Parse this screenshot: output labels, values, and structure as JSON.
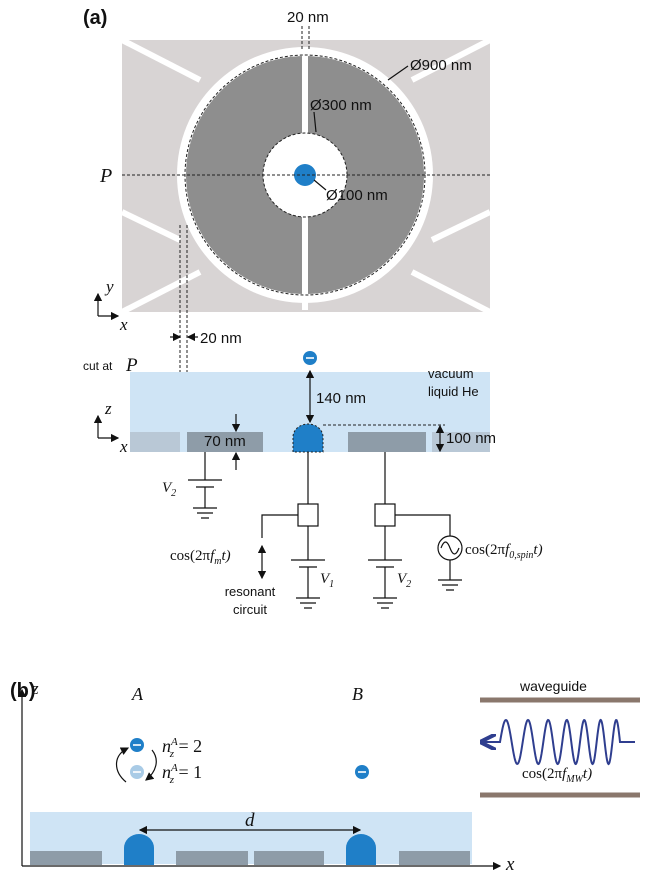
{
  "panel_a": {
    "label": "(a)",
    "top_view": {
      "gap_label": "20 nm",
      "outer_diameter": "Ø900 nm",
      "inner_diameter": "Ø300 nm",
      "dot_diameter": "Ø100 nm",
      "cut_line": "P",
      "axis_y": "y",
      "axis_x": "x",
      "electrode_gap": "20 nm"
    },
    "cross_section": {
      "cut_text": "cut at",
      "cut_var": "P",
      "vacuum": "vacuum",
      "liquid": "liquid He",
      "height": "140 nm",
      "axis_z": "z",
      "axis_x": "x",
      "thickness": "70 nm",
      "dome_height": "100 nm",
      "left_voltage": {
        "base": "V",
        "sub": "2"
      },
      "center_voltage": {
        "base": "V",
        "sub": "1"
      },
      "right_voltage": {
        "base": "V",
        "sub": "2"
      },
      "readout_signal": {
        "pre": "cos(2π",
        "base": "f",
        "sub": "m",
        "post": "t)"
      },
      "readout_label": [
        "resonant",
        "circuit"
      ],
      "drive_signal": {
        "pre": "cos(2π",
        "base": "f",
        "sub": "0,spin",
        "post": "t)"
      }
    }
  },
  "panel_b": {
    "label": "(b)",
    "site_a": "A",
    "site_b": "B",
    "axis_z": "z",
    "axis_x": "x",
    "state_upper": {
      "base": "n",
      "sup": "A",
      "sub": "z",
      "post": " = 2"
    },
    "state_lower": {
      "base": "n",
      "sup": "A",
      "sub": "z",
      "post": " = 1"
    },
    "spacing": "d",
    "waveguide": "waveguide",
    "microwave": {
      "pre": "cos(2π",
      "base": "f",
      "sub": "MW",
      "post": "t)"
    }
  }
}
